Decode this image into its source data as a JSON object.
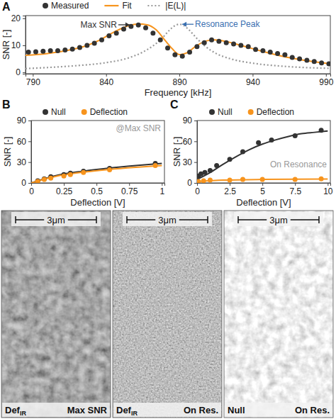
{
  "chart_data": [
    {
      "type": "line",
      "panel": "A",
      "x_label": "Frequency [kHz]",
      "y_label": "SNR [-]",
      "xlim": [
        785,
        993
      ],
      "xticks": [
        790,
        840,
        890,
        940,
        990
      ],
      "ylim": [
        -0.5,
        21
      ],
      "yticks": [
        0,
        10,
        20
      ],
      "legend": "top",
      "series": [
        {
          "name": "Measured",
          "type": "scatter",
          "color": "#333333",
          "marker": "circle",
          "x": [
            787,
            792,
            797,
            802,
            807,
            812,
            817,
            822,
            827,
            832,
            837,
            842,
            847,
            852,
            857,
            862,
            867,
            872,
            877,
            882,
            887,
            892,
            897,
            902,
            907,
            912,
            917,
            922,
            927,
            932,
            937,
            942,
            947,
            952,
            957,
            962,
            967,
            972,
            977,
            982,
            987,
            992
          ],
          "values": [
            7.5,
            7.6,
            7.8,
            8,
            8,
            8.3,
            8.6,
            9.2,
            10,
            10.8,
            12,
            13.5,
            14.5,
            16,
            17,
            17.5,
            16.5,
            14.5,
            12,
            9,
            6.5,
            6,
            7.5,
            9.5,
            11,
            12,
            11.5,
            11,
            10.5,
            10,
            9.5,
            8.5,
            8,
            7.5,
            7,
            6.5,
            5.5,
            5,
            4.5,
            4,
            3.5,
            3.2
          ]
        },
        {
          "name": "Fit",
          "type": "line",
          "color": "#f7941d",
          "line_style": "solid",
          "x": [
            785,
            800,
            815,
            825,
            835,
            845,
            855,
            862,
            868,
            874,
            880,
            885,
            890,
            895,
            901,
            908,
            914,
            922,
            932,
            945,
            960,
            975,
            993
          ],
          "values": [
            6.3,
            7,
            8.3,
            9.6,
            11.8,
            14.8,
            17.2,
            17.9,
            17.6,
            15.8,
            12,
            8.8,
            6.6,
            7.2,
            9.6,
            11.6,
            12,
            11.4,
            10,
            8,
            6,
            4.5,
            3.2
          ]
        },
        {
          "name": "|E(L)|",
          "type": "line",
          "color": "#999999",
          "line_style": "dotted",
          "x": [
            785,
            800,
            820,
            840,
            855,
            865,
            872,
            878,
            883,
            887,
            890,
            893,
            897,
            902,
            908,
            915,
            925,
            940,
            960,
            980,
            993
          ],
          "values": [
            1.4,
            1.8,
            2.5,
            3.6,
            5.3,
            7.5,
            9.8,
            12.5,
            15.5,
            17.3,
            17.8,
            17.3,
            15.5,
            12.5,
            9.5,
            7,
            5,
            3.4,
            2.3,
            1.7,
            1.5
          ]
        }
      ],
      "annotations": [
        {
          "text": "Max SNR",
          "x": 858,
          "y": 17.6,
          "color": "#333333"
        },
        {
          "text": "Resonance Peak",
          "x": 890,
          "y": 17.8,
          "color": "#3a6fb0"
        }
      ]
    },
    {
      "type": "line",
      "panel": "B",
      "x_label": "Deflection [V]",
      "y_label": "SNR [-]",
      "xlim": [
        0,
        1.02
      ],
      "xticks": [
        0,
        0.25,
        0.5,
        0.75,
        1
      ],
      "ylim": [
        0,
        90
      ],
      "yticks": [
        0,
        30,
        60,
        90
      ],
      "legend": "top",
      "series": [
        {
          "name": "Null",
          "type": "scatter",
          "color": "#333333",
          "marker": "circle",
          "x": [
            0.05,
            0.1,
            0.15,
            0.25,
            0.3,
            0.4,
            0.6,
            0.95
          ],
          "values": [
            3,
            6,
            9,
            12,
            14,
            17,
            21,
            28
          ]
        },
        {
          "name": "Deflection",
          "type": "scatter",
          "color": "#f7941d",
          "marker": "circle",
          "x": [
            0.05,
            0.1,
            0.15,
            0.25,
            0.3,
            0.4,
            0.6,
            0.95
          ],
          "values": [
            2,
            5,
            7,
            10,
            12,
            15,
            19,
            25
          ]
        },
        {
          "type": "line",
          "color": "#333333",
          "line_style": "solid",
          "x": [
            0,
            0.2,
            0.4,
            0.6,
            0.8,
            1
          ],
          "values": [
            0,
            11,
            17,
            21.5,
            25,
            28
          ]
        },
        {
          "type": "line",
          "color": "#f7941d",
          "line_style": "solid",
          "x": [
            0,
            0.2,
            0.4,
            0.6,
            0.8,
            1
          ],
          "values": [
            0,
            10,
            15.5,
            19.5,
            22.5,
            25
          ]
        }
      ],
      "annotations": [
        {
          "text": "@Max SNR",
          "color": "#999999"
        }
      ]
    },
    {
      "type": "line",
      "panel": "C",
      "x_label": "Deflection [V]",
      "y_label": "SNR [-]",
      "xlim": [
        0,
        10.2
      ],
      "xticks": [
        0,
        2.5,
        5,
        7.5,
        10
      ],
      "ylim": [
        0,
        90
      ],
      "yticks": [
        0,
        30,
        60,
        90
      ],
      "legend": "top",
      "series": [
        {
          "name": "Null",
          "type": "scatter",
          "color": "#333333",
          "marker": "circle",
          "x": [
            0.1,
            0.3,
            0.6,
            1,
            1.5,
            2.5,
            3.5,
            4.7,
            5.7,
            7.5,
            9.5
          ],
          "values": [
            10,
            13,
            15,
            18,
            25,
            34,
            45,
            58,
            62,
            68,
            76
          ]
        },
        {
          "name": "Deflection",
          "type": "scatter",
          "color": "#f7941d",
          "marker": "circle",
          "x": [
            0.1,
            0.5,
            1,
            2.5,
            3.5,
            5,
            7.5,
            9.5
          ],
          "values": [
            2,
            3,
            4,
            4,
            5,
            5,
            5,
            6
          ]
        },
        {
          "type": "line",
          "color": "#333333",
          "line_style": "solid",
          "x": [
            0,
            1,
            2,
            3,
            4,
            5,
            6,
            7,
            8,
            9,
            10
          ],
          "values": [
            5,
            15,
            27,
            38,
            48,
            56,
            62,
            67,
            71,
            73,
            75
          ]
        },
        {
          "type": "line",
          "color": "#f7941d",
          "line_style": "solid",
          "x": [
            0,
            2,
            5,
            10
          ],
          "values": [
            2,
            4,
            5,
            5.5
          ]
        }
      ],
      "annotations": [
        {
          "text": "On Resonance",
          "color": "#999999"
        }
      ]
    }
  ],
  "images": [
    {
      "scale_bar": "3μm",
      "label": "Def",
      "label_sub": "IR",
      "condition": "Max SNR"
    },
    {
      "scale_bar": "3μm",
      "label": "Def",
      "label_sub": "IR",
      "condition": "On Res."
    },
    {
      "scale_bar": "3μm",
      "label": "Null",
      "condition": "On Res."
    }
  ]
}
